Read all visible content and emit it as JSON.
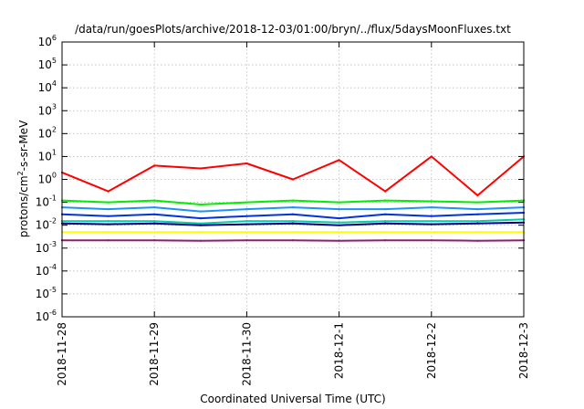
{
  "chart_data": {
    "type": "line",
    "title": "/data/run/goesPlots/archive/2018-12-03/01:00/bryn/../flux/5daysMoonFluxes.txt",
    "xlabel": "Coordinated Universal Time (UTC)",
    "ylabel_parts": [
      "protons/cm",
      "2",
      "-s-sr-MeV"
    ],
    "yscale": "log",
    "ylim": [
      1e-06,
      1000000.0
    ],
    "xlim": [
      "2018-11-28 00:00",
      "2018-12-03 00:00"
    ],
    "grid": true,
    "legend": "none",
    "x_ticks": [
      "2018-11-28",
      "2018-11-29",
      "2018-11-30",
      "2018-12-1",
      "2018-12-2",
      "2018-12-3"
    ],
    "y_ticks": [
      {
        "base": "10",
        "exp": "-6"
      },
      {
        "base": "10",
        "exp": "-5"
      },
      {
        "base": "10",
        "exp": "-4"
      },
      {
        "base": "10",
        "exp": "-3"
      },
      {
        "base": "10",
        "exp": "-2"
      },
      {
        "base": "10",
        "exp": "-1"
      },
      {
        "base": "10",
        "exp": "0"
      },
      {
        "base": "10",
        "exp": "1"
      },
      {
        "base": "10",
        "exp": "2"
      },
      {
        "base": "10",
        "exp": "3"
      },
      {
        "base": "10",
        "exp": "4"
      },
      {
        "base": "10",
        "exp": "5"
      },
      {
        "base": "10",
        "exp": "6"
      }
    ],
    "x": [
      "2018-11-28",
      "2018-11-28 12:00",
      "2018-11-29",
      "2018-11-29 12:00",
      "2018-11-30",
      "2018-11-30 12:00",
      "2018-12-01",
      "2018-12-01 12:00",
      "2018-12-02",
      "2018-12-02 12:00",
      "2018-12-03"
    ],
    "series": [
      {
        "color": "#ff0000",
        "values": [
          2.0,
          0.3,
          4.0,
          3.0,
          5.0,
          1.0,
          7.0,
          0.3,
          10.0,
          0.2,
          10.0
        ]
      },
      {
        "color": "#00ee00",
        "values": [
          0.12,
          0.1,
          0.12,
          0.08,
          0.1,
          0.12,
          0.1,
          0.12,
          0.11,
          0.1,
          0.12
        ]
      },
      {
        "color": "#1f8fff",
        "values": [
          0.06,
          0.05,
          0.06,
          0.04,
          0.05,
          0.06,
          0.05,
          0.05,
          0.06,
          0.05,
          0.06
        ]
      },
      {
        "color": "#0033dd",
        "values": [
          0.03,
          0.025,
          0.03,
          0.02,
          0.025,
          0.03,
          0.02,
          0.03,
          0.025,
          0.03,
          0.035
        ]
      },
      {
        "color": "#00ccaa",
        "values": [
          0.015,
          0.015,
          0.015,
          0.012,
          0.015,
          0.015,
          0.013,
          0.015,
          0.015,
          0.015,
          0.018
        ]
      },
      {
        "color": "#00008b",
        "values": [
          0.012,
          0.011,
          0.012,
          0.01,
          0.011,
          0.012,
          0.01,
          0.012,
          0.011,
          0.012,
          0.013
        ]
      },
      {
        "color": "#ffff00",
        "values": [
          0.005,
          0.005,
          0.005,
          0.005,
          0.005,
          0.005,
          0.005,
          0.005,
          0.005,
          0.005,
          0.005
        ]
      },
      {
        "color": "#8b2070",
        "values": [
          0.0022,
          0.0022,
          0.0022,
          0.0021,
          0.0022,
          0.0022,
          0.0021,
          0.0022,
          0.0022,
          0.0021,
          0.0022
        ]
      }
    ]
  }
}
